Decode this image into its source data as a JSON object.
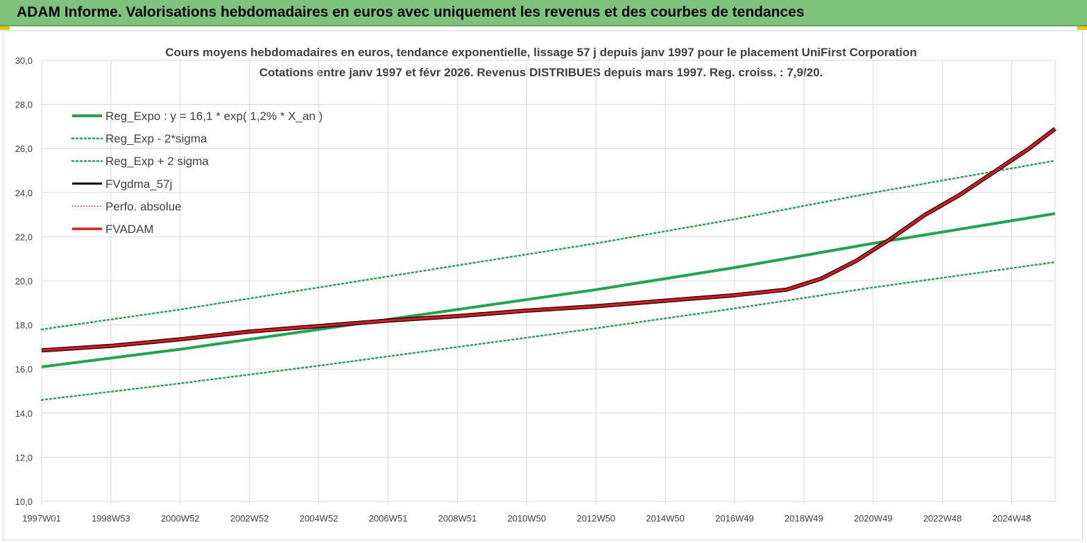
{
  "header": {
    "title": "ADAM Informe. Valorisations hebdomadaires en euros avec uniquement les revenus et des courbes de tendances"
  },
  "colors": {
    "banner": "#7dc47a",
    "trend_green": "#1aa84b",
    "fvadam_red": "#e8141c",
    "fvgdma_black": "#000000",
    "perfo_red": "#e8141c",
    "grid": "#d9d9d9",
    "text": "#404040"
  },
  "chart_data": {
    "type": "line",
    "title": "Cours moyens hebdomadaires en euros, tendance exponentielle, lissage 57 j depuis janv 1997 pour le placement UniFirst Corporation",
    "subtitle": "Cotations entre janv 1997 et févr 2026. Revenus DISTRIBUES depuis mars 1997. Reg. croiss. : 7,9/20.",
    "xlabel": "",
    "ylabel": "",
    "ylim": [
      10,
      30
    ],
    "yticks": [
      "10,0",
      "12,0",
      "14,0",
      "16,0",
      "18,0",
      "20,0",
      "22,0",
      "24,0",
      "26,0",
      "28,0",
      "30,0"
    ],
    "x_range": [
      1997.0,
      2026.25
    ],
    "xticks": [
      {
        "label": "1997W01",
        "x": 1997.0
      },
      {
        "label": "1998W53",
        "x": 1999.0
      },
      {
        "label": "2000W52",
        "x": 2001.0
      },
      {
        "label": "2002W52",
        "x": 2003.0
      },
      {
        "label": "2004W52",
        "x": 2005.0
      },
      {
        "label": "2006W51",
        "x": 2007.0
      },
      {
        "label": "2008W51",
        "x": 2009.0
      },
      {
        "label": "2010W50",
        "x": 2011.0
      },
      {
        "label": "2012W50",
        "x": 2013.0
      },
      {
        "label": "2014W50",
        "x": 2015.0
      },
      {
        "label": "2016W49",
        "x": 2017.0
      },
      {
        "label": "2018W49",
        "x": 2019.0
      },
      {
        "label": "2020W49",
        "x": 2021.0
      },
      {
        "label": "2022W48",
        "x": 2023.0
      },
      {
        "label": "2024W48",
        "x": 2025.0
      }
    ],
    "grid": true,
    "legend_position": "top-left",
    "series": [
      {
        "name": "Reg_Expo : y = 16,1 * exp( 1,2% *  X_an )",
        "style": "solid-thick",
        "x": [
          1997.0,
          2001.0,
          2005.0,
          2009.0,
          2013.0,
          2017.0,
          2021.0,
          2026.25
        ],
        "y": [
          16.1,
          16.9,
          17.8,
          18.7,
          19.6,
          20.6,
          21.7,
          23.05
        ]
      },
      {
        "name": "Reg_Exp - 2*sigma",
        "style": "dotted",
        "x": [
          1997.0,
          2001.0,
          2005.0,
          2009.0,
          2013.0,
          2017.0,
          2021.0,
          2026.25
        ],
        "y": [
          14.6,
          15.35,
          16.15,
          17.0,
          17.85,
          18.75,
          19.7,
          20.85
        ]
      },
      {
        "name": "Reg_Exp + 2 sigma",
        "style": "dotted",
        "x": [
          1997.0,
          2001.0,
          2005.0,
          2009.0,
          2013.0,
          2017.0,
          2021.0,
          2026.25
        ],
        "y": [
          17.8,
          18.7,
          19.7,
          20.7,
          21.7,
          22.8,
          24.0,
          25.45
        ]
      },
      {
        "name": "FVgdma_57j",
        "style": "solid",
        "x": [
          1997.0,
          1999.0,
          2001.0,
          2003.0,
          2005.0,
          2007.0,
          2009.0,
          2011.0,
          2013.0,
          2015.0,
          2017.0,
          2018.5,
          2019.5,
          2020.5,
          2021.5,
          2022.5,
          2023.5,
          2024.5,
          2025.5,
          2026.25
        ],
        "y": [
          16.85,
          17.05,
          17.35,
          17.7,
          17.95,
          18.2,
          18.4,
          18.65,
          18.85,
          19.1,
          19.35,
          19.6,
          20.1,
          20.9,
          21.9,
          23.0,
          23.9,
          24.95,
          26.0,
          26.9
        ]
      },
      {
        "name": "Perfo. absolue",
        "style": "dotted",
        "x": [],
        "y": []
      },
      {
        "name": "FVADAM",
        "style": "solid-thick",
        "x": [
          1997.0,
          1999.0,
          2001.0,
          2003.0,
          2005.0,
          2007.0,
          2009.0,
          2011.0,
          2013.0,
          2015.0,
          2017.0,
          2018.5,
          2019.5,
          2020.5,
          2021.5,
          2022.5,
          2023.5,
          2024.5,
          2025.5,
          2026.25
        ],
        "y": [
          16.85,
          17.05,
          17.35,
          17.7,
          17.95,
          18.2,
          18.4,
          18.65,
          18.85,
          19.1,
          19.35,
          19.6,
          20.1,
          20.9,
          21.9,
          23.0,
          23.9,
          24.95,
          26.0,
          26.9
        ]
      }
    ]
  }
}
